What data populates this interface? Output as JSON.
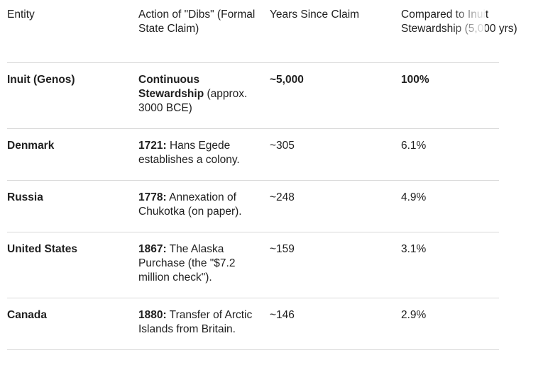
{
  "table": {
    "headers": [
      "Entity",
      "Action of \"Dibs\" (Formal State Claim)",
      "Years Since Claim",
      "Compared to Inuit Stewardship (5,000 yrs)"
    ],
    "rows": [
      {
        "entity": "Inuit (Genos)",
        "action_bold": "Continuous Stewardship",
        "action_rest": " (approx. 3000 BCE)",
        "years": "~5,000",
        "compared": "100%",
        "emphasis": true
      },
      {
        "entity": "Denmark",
        "action_bold": "1721:",
        "action_rest": " Hans Egede establishes a colony.",
        "years": "~305",
        "compared": "6.1%",
        "emphasis": false
      },
      {
        "entity": "Russia",
        "action_bold": "1778:",
        "action_rest": " Annexation of Chukotka (on paper).",
        "years": "~248",
        "compared": "4.9%",
        "emphasis": false
      },
      {
        "entity": "United States",
        "action_bold": "1867:",
        "action_rest": " The Alaska Purchase (the \"$7.2 million check\").",
        "years": "~159",
        "compared": "3.1%",
        "emphasis": false
      },
      {
        "entity": "Canada",
        "action_bold": "1880:",
        "action_rest": " Transfer of Arctic Islands from Britain.",
        "years": "~146",
        "compared": "2.9%",
        "emphasis": false
      }
    ]
  }
}
